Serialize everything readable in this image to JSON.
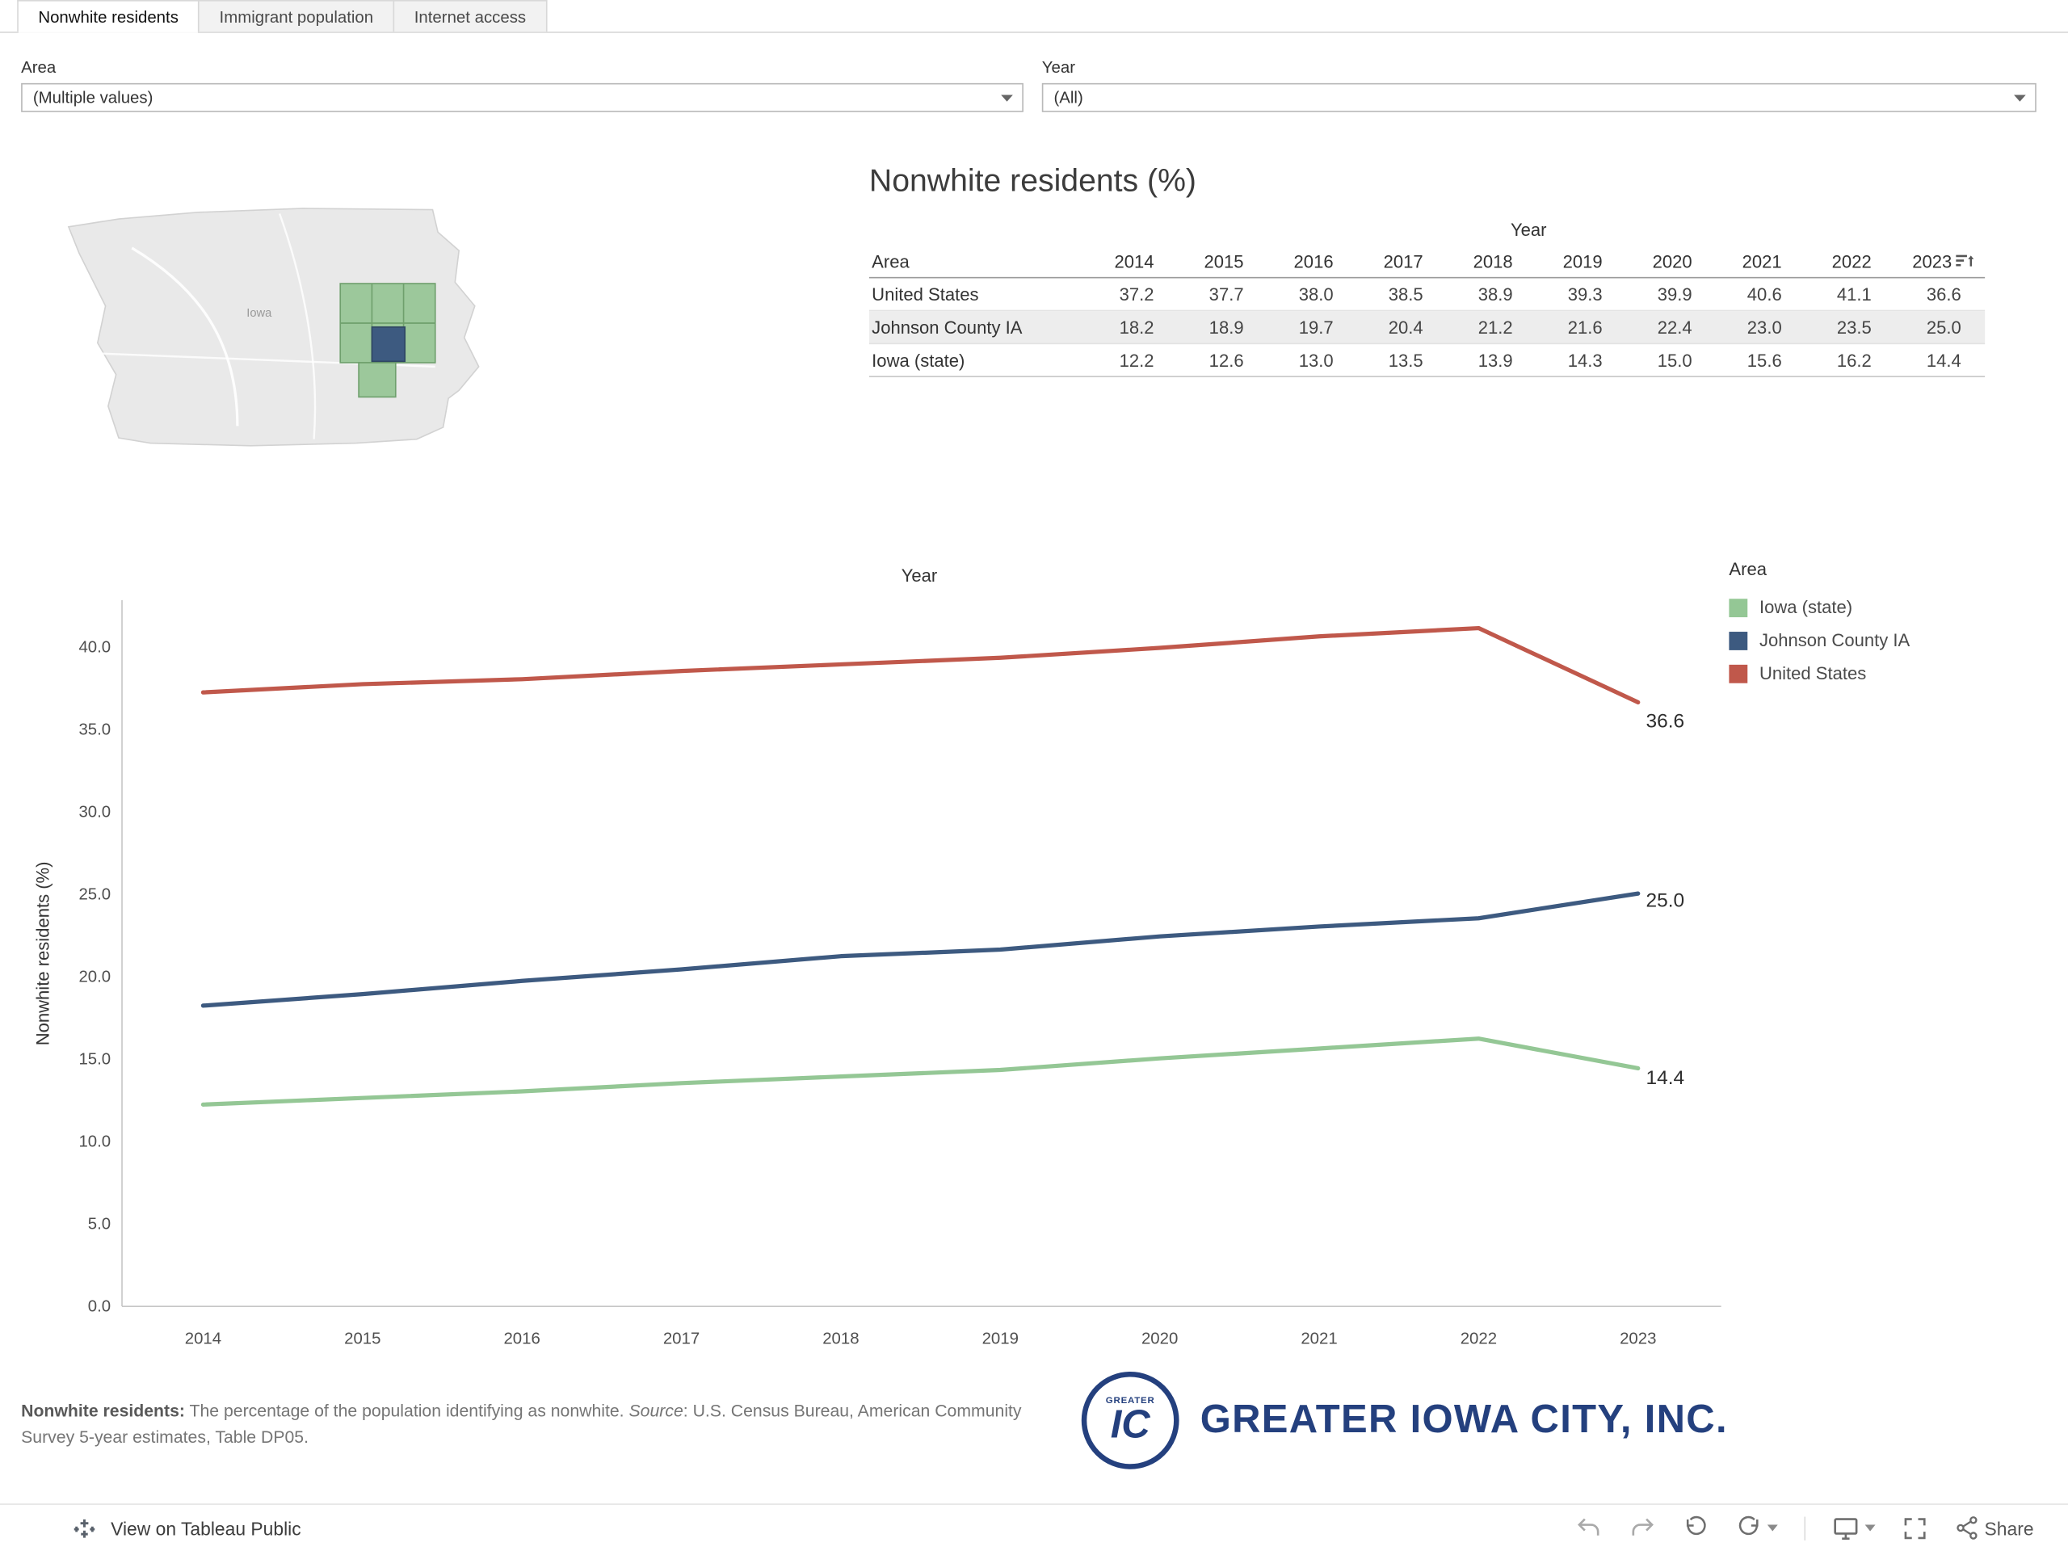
{
  "tabs": [
    {
      "label": "Nonwhite residents",
      "active": true
    },
    {
      "label": "Immigrant population",
      "active": false
    },
    {
      "label": "Internet access",
      "active": false
    }
  ],
  "filters": {
    "area": {
      "label": "Area",
      "value": "(Multiple values)"
    },
    "year": {
      "label": "Year",
      "value": "(All)"
    }
  },
  "map": {
    "state_label": "Iowa"
  },
  "table": {
    "title": "Nonwhite residents (%)",
    "year_header": "Year",
    "area_header": "Area",
    "years": [
      "2014",
      "2015",
      "2016",
      "2017",
      "2018",
      "2019",
      "2020",
      "2021",
      "2022",
      "2023"
    ],
    "rows": [
      {
        "area": "United States",
        "highlight": false,
        "values": [
          37.2,
          37.7,
          38.0,
          38.5,
          38.9,
          39.3,
          39.9,
          40.6,
          41.1,
          36.6
        ]
      },
      {
        "area": "Johnson County IA",
        "highlight": true,
        "values": [
          18.2,
          18.9,
          19.7,
          20.4,
          21.2,
          21.6,
          22.4,
          23.0,
          23.5,
          25.0
        ]
      },
      {
        "area": "Iowa (state)",
        "highlight": false,
        "values": [
          12.2,
          12.6,
          13.0,
          13.5,
          13.9,
          14.3,
          15.0,
          15.6,
          16.2,
          14.4
        ]
      }
    ]
  },
  "chart_data": {
    "type": "line",
    "title": "Year",
    "ylabel": "Nonwhite residents (%)",
    "x": [
      "2014",
      "2015",
      "2016",
      "2017",
      "2018",
      "2019",
      "2020",
      "2021",
      "2022",
      "2023"
    ],
    "ylim": [
      0,
      42
    ],
    "yticks": [
      0,
      5,
      10,
      15,
      20,
      25,
      30,
      35,
      40
    ],
    "grid": false,
    "legend": {
      "title": "Area",
      "position": "right"
    },
    "series": [
      {
        "name": "Iowa (state)",
        "color": "#94c795",
        "values": [
          12.2,
          12.6,
          13.0,
          13.5,
          13.9,
          14.3,
          15.0,
          15.6,
          16.2,
          14.4
        ],
        "end_label": "14.4"
      },
      {
        "name": "Johnson County IA",
        "color": "#3d5a80",
        "values": [
          18.2,
          18.9,
          19.7,
          20.4,
          21.2,
          21.6,
          22.4,
          23.0,
          23.5,
          25.0
        ],
        "end_label": "25.0"
      },
      {
        "name": "United States",
        "color": "#c0584b",
        "values": [
          37.2,
          37.7,
          38.0,
          38.5,
          38.9,
          39.3,
          39.9,
          40.6,
          41.1,
          36.6
        ],
        "end_label": "36.6"
      }
    ]
  },
  "footnote": {
    "term": "Nonwhite residents:",
    "desc": "The percentage of the population identifying as nonwhite.",
    "source_label": "Source",
    "source_text": ": U.S. Census Bureau, American Community Survey 5-year estimates, Table DP05."
  },
  "logo": {
    "badge_top": "GREATER",
    "badge_initials": "IC",
    "wordmark": "GREATER IOWA CITY, INC."
  },
  "toolbar": {
    "view_label": "View on Tableau Public",
    "share_label": "Share"
  }
}
